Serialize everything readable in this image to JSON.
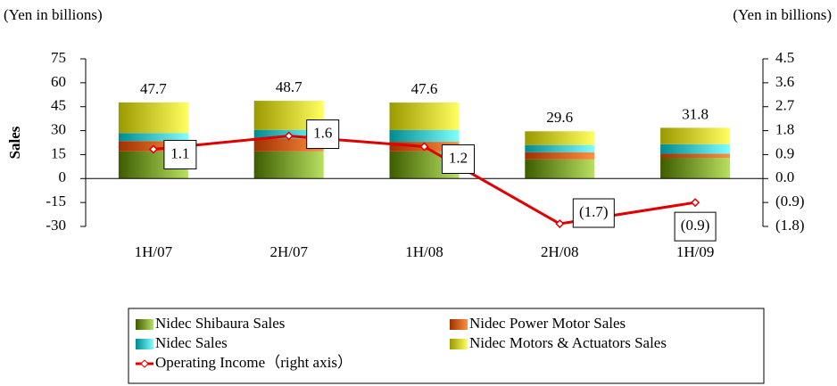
{
  "chart_data": {
    "type": "bar",
    "stacked": true,
    "y_unit_left": "(Yen in billions)",
    "y_unit_right": "(Yen in billions)",
    "ylabel": "Sales",
    "categories": [
      "1H/07",
      "2H/07",
      "1H/08",
      "2H/08",
      "1H/09"
    ],
    "series": [
      {
        "name": "Nidec Shibaura Sales",
        "color": "#6a9a10",
        "values": [
          17,
          17,
          17,
          12,
          13
        ]
      },
      {
        "name": "Nidec Power Motor Sales",
        "color": "#e0600a",
        "values": [
          6.5,
          8,
          6,
          4.5,
          2.5
        ]
      },
      {
        "name": "Nidec Sales",
        "color": "#10c8d0",
        "values": [
          5,
          5.5,
          7.5,
          4.5,
          6
        ]
      },
      {
        "name": "Nidec Motors & Actuators Sales",
        "color": "#e8e800",
        "values": [
          19.2,
          18.2,
          17.1,
          8.6,
          10.3
        ]
      },
      {
        "name": "Operating Income（right axis）",
        "color": "#e00000",
        "type": "line",
        "axis": "y2",
        "values": [
          1.1,
          1.6,
          1.2,
          -1.7,
          -0.9
        ],
        "value_labels": [
          "1.1",
          "1.6",
          "1.2",
          "(1.7)",
          "(0.9)"
        ]
      }
    ],
    "totals": [
      47.7,
      48.7,
      47.6,
      29.6,
      31.8
    ],
    "ylim": [
      -30,
      75
    ],
    "yticks": [
      75,
      60,
      45,
      30,
      15,
      0,
      -15,
      -30
    ],
    "y2lim": [
      -1.8,
      4.5
    ],
    "y2ticks": [
      {
        "value": 4.5,
        "label": "4.5"
      },
      {
        "value": 3.6,
        "label": "3.6"
      },
      {
        "value": 2.7,
        "label": "2.7"
      },
      {
        "value": 1.8,
        "label": "1.8"
      },
      {
        "value": 0.9,
        "label": "0.9"
      },
      {
        "value": 0,
        "label": "0.0"
      },
      {
        "value": -0.9,
        "label": "(0.9)"
      },
      {
        "value": -1.8,
        "label": "(1.8)"
      }
    ]
  }
}
